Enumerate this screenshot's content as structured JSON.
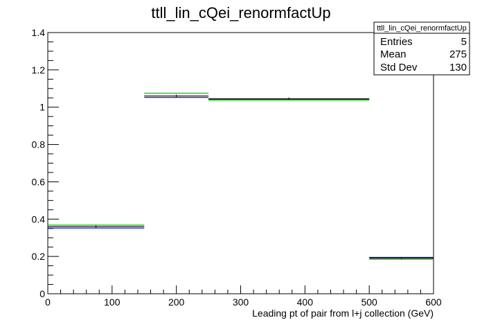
{
  "chart_data": {
    "type": "bar",
    "title": "ttll_lin_cQei_renormfactUp",
    "xlabel": "Leading pt of pair from l+j collection (GeV)",
    "ylabel": "",
    "xlim": [
      0,
      600
    ],
    "ylim": [
      0,
      1.4
    ],
    "x_ticks": [
      0,
      100,
      200,
      300,
      400,
      500,
      600
    ],
    "y_ticks": [
      0,
      0.2,
      0.4,
      0.6,
      0.8,
      1,
      1.2,
      1.4
    ],
    "x_tick_labels": [
      "0",
      "100",
      "200",
      "300",
      "400",
      "500",
      "600"
    ],
    "y_tick_labels": [
      "0",
      "0.2",
      "0.4",
      "0.6",
      "0.8",
      "1",
      "1.2",
      "1.4"
    ],
    "bins": [
      [
        0,
        150
      ],
      [
        150,
        250
      ],
      [
        250,
        500
      ],
      [
        500,
        600
      ]
    ],
    "series": [
      {
        "color": "#000000",
        "values": [
          0.36,
          1.06,
          1.045,
          0.19
        ]
      },
      {
        "color": "#0000ff",
        "values": [
          0.352,
          1.052,
          1.04,
          0.195
        ]
      },
      {
        "color": "#00cc00",
        "values": [
          0.368,
          1.075,
          1.038,
          0.185
        ]
      }
    ],
    "grid": false,
    "legend_position": "top-right"
  },
  "stats_box": {
    "title": "ttll_lin_cQei_renormfactUp",
    "rows": [
      {
        "label": "Entries",
        "value": "5"
      },
      {
        "label": "Mean",
        "value": "275"
      },
      {
        "label": "Std Dev",
        "value": "130"
      }
    ]
  }
}
